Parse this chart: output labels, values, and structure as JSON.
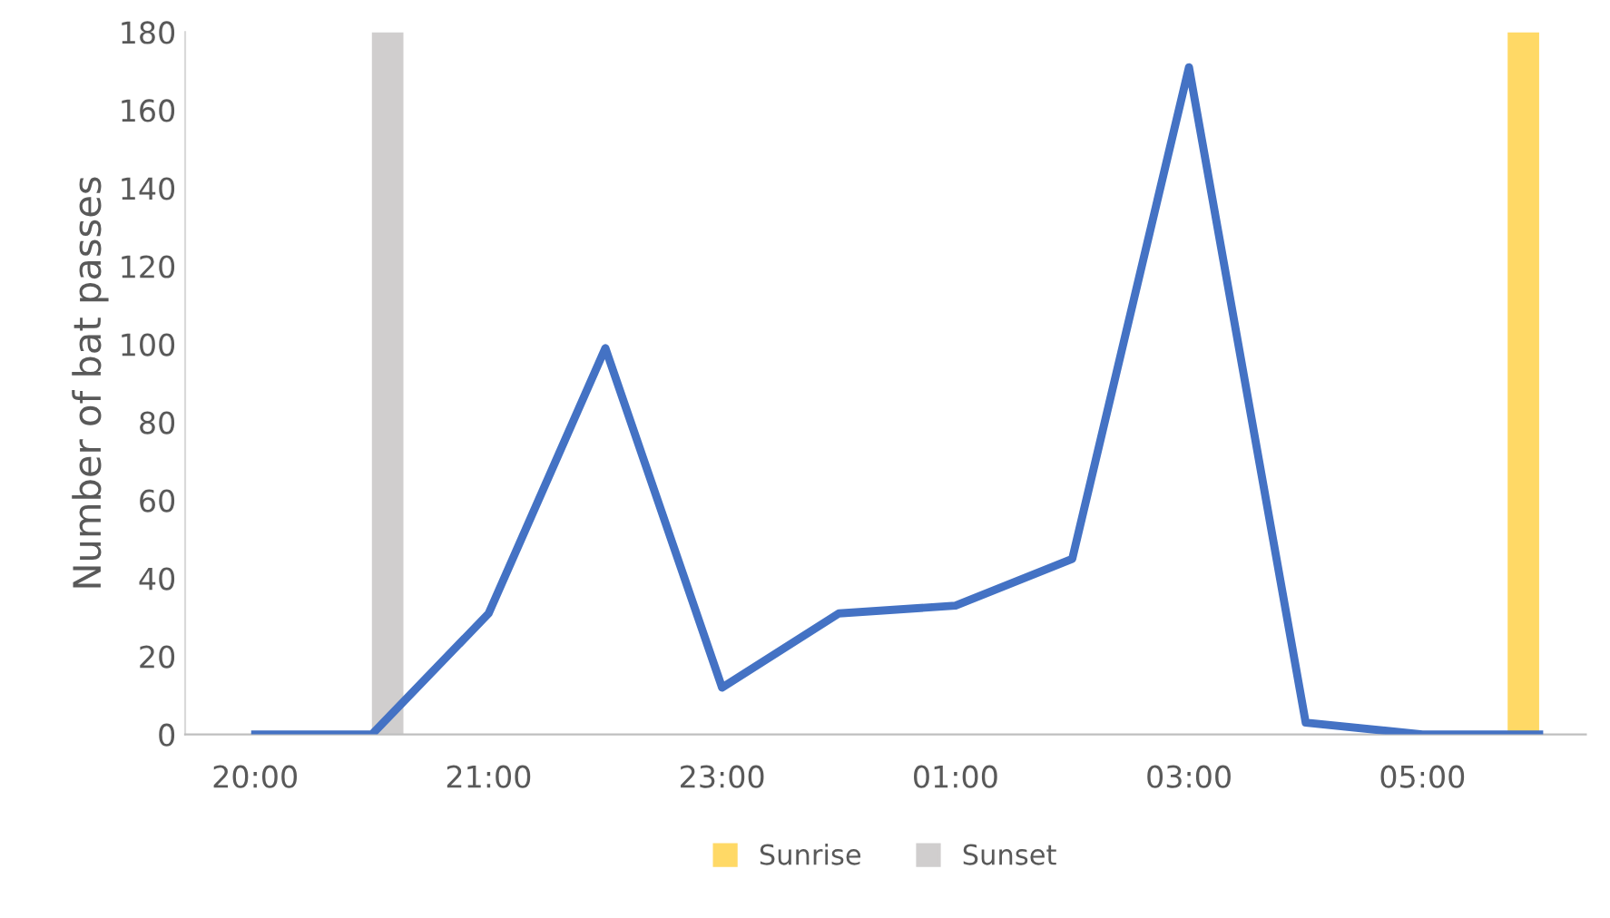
{
  "chart_data": {
    "type": "line",
    "ylabel": "Number of bat passes",
    "categories": [
      "20:00",
      null,
      "21:00",
      null,
      "23:00",
      null,
      "01:00",
      null,
      "03:00",
      null,
      "05:00",
      null
    ],
    "series": [
      {
        "color": "#4472c4",
        "values": [
          0,
          0,
          31,
          99,
          12,
          31,
          33,
          45,
          171,
          3,
          0,
          0
        ]
      },
      {
        "name": "Sunrise",
        "type": "bar",
        "color": "#ffd966",
        "values": [
          null,
          null,
          null,
          null,
          null,
          null,
          null,
          null,
          null,
          null,
          null,
          180
        ]
      },
      {
        "name": "Sunset",
        "type": "bar",
        "color": "#d0cece",
        "values": [
          null,
          180,
          null,
          null,
          null,
          null,
          null,
          null,
          null,
          null,
          null,
          null
        ]
      }
    ],
    "ylim": [
      0,
      180
    ],
    "yticks": [
      0,
      20,
      40,
      60,
      80,
      100,
      120,
      140,
      160,
      180
    ],
    "grid": false,
    "legend": "bottom",
    "marker": "none",
    "line_style": "solid"
  }
}
